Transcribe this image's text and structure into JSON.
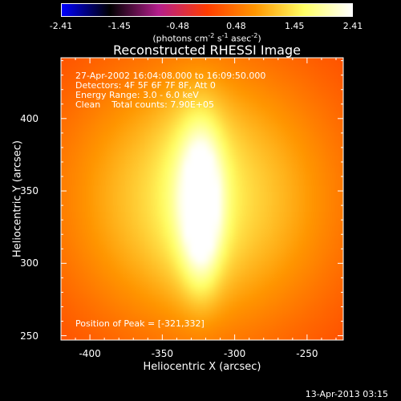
{
  "colorbar": {
    "ticks": [
      "-2.41",
      "-1.45",
      "-0.48",
      "0.48",
      "1.45",
      "2.41"
    ],
    "unit_prefix": "(photons cm",
    "unit_exp1": "-2",
    "unit_mid1": " s",
    "unit_exp2": "-1",
    "unit_mid2": " asec",
    "unit_exp3": "-2",
    "unit_suffix": ")",
    "colormap": [
      "#0000ff",
      "#000000",
      "#b41e8c",
      "#ff3c00",
      "#ff9600",
      "#ffff64",
      "#ffffff"
    ]
  },
  "info": {
    "line1": "27-Apr-2002 16:04:08.000 to 16:09:50.000",
    "line2": "Detectors: 4F 5F 6F 7F 8F, Att 0",
    "line3": "Energy Range: 3.0 - 6.0 keV",
    "line4": "Clean    Total counts: 7.90E+05"
  },
  "peak_label": "Position of Peak = [-321,332]",
  "timestamp": "13-Apr-2013 03:15",
  "chart_data": {
    "type": "heatmap",
    "title": "Reconstructed RHESSI Image",
    "xlabel": "Heliocentric X (arcsec)",
    "ylabel": "Heliocentric Y (arcsec)",
    "xlim": [
      -420,
      -225
    ],
    "ylim": [
      247,
      442
    ],
    "x_ticks": [
      "-400",
      "-350",
      "-300",
      "-250"
    ],
    "x_tick_values": [
      -400,
      -350,
      -300,
      -250
    ],
    "y_ticks": [
      "250",
      "300",
      "350",
      "400"
    ],
    "y_tick_values": [
      250,
      300,
      350,
      400
    ],
    "peak": {
      "x": -321,
      "y": 332
    },
    "components": [
      {
        "x": -323,
        "y": 338,
        "amplitude": 1.0,
        "sx": 9,
        "sy": 34
      },
      {
        "x": -327,
        "y": 352,
        "amplitude": 0.35,
        "sx": 16,
        "sy": 45
      },
      {
        "x": -324,
        "y": 345,
        "amplitude": 0.95,
        "sx": 70,
        "sy": 70
      }
    ]
  }
}
